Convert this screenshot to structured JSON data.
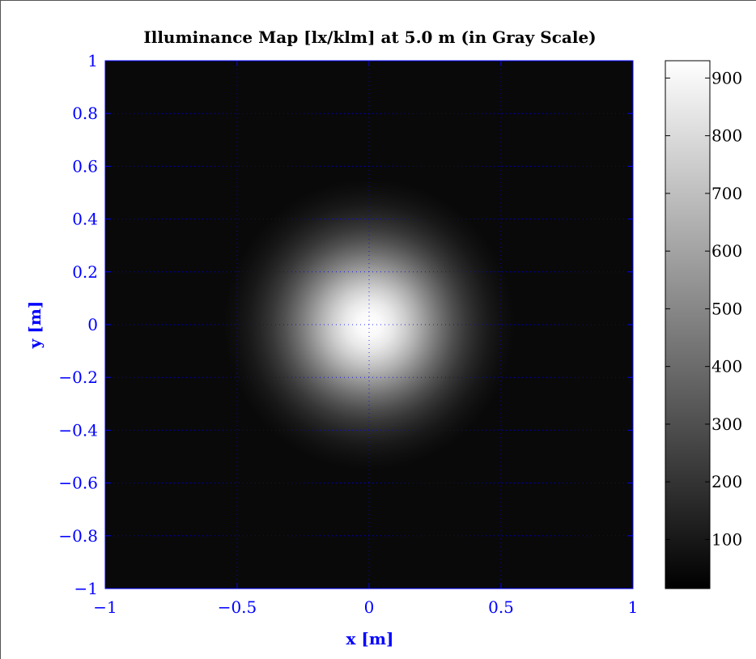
{
  "chart_data": {
    "type": "heatmap",
    "title": "Illuminance Map [lx/klm] at 5.0 m (in Gray Scale)",
    "xlabel": "x [m]",
    "ylabel": "y [m]",
    "xlim": [
      -1,
      1
    ],
    "ylim": [
      -1,
      1
    ],
    "x_ticks": [
      -1,
      -0.5,
      0,
      0.5,
      1
    ],
    "x_tick_labels": [
      "−1",
      "−0.5",
      "0",
      "0.5",
      "1"
    ],
    "y_ticks": [
      1,
      0.8,
      0.6,
      0.4,
      0.2,
      0,
      -0.2,
      -0.4,
      -0.6,
      -0.8,
      -1
    ],
    "y_tick_labels": [
      "1",
      "0.8",
      "0.6",
      "0.4",
      "0.2",
      "0",
      "−0.2",
      "−0.4",
      "−0.6",
      "−0.8",
      "−1"
    ],
    "grid": true,
    "colormap": "gray",
    "colorbar": {
      "range": [
        15,
        930
      ],
      "ticks": [
        100,
        200,
        300,
        400,
        500,
        600,
        700,
        800,
        900
      ],
      "tick_labels": [
        "100",
        "200",
        "300",
        "400",
        "500",
        "600",
        "700",
        "800",
        "900"
      ]
    },
    "peak": {
      "x": 0,
      "y": 0,
      "value": 930
    },
    "edge_value": 15,
    "falloff_radius": 0.55,
    "colors": {
      "axis": "#0000ff",
      "title": "#000000",
      "grid": "#0000ff"
    }
  }
}
